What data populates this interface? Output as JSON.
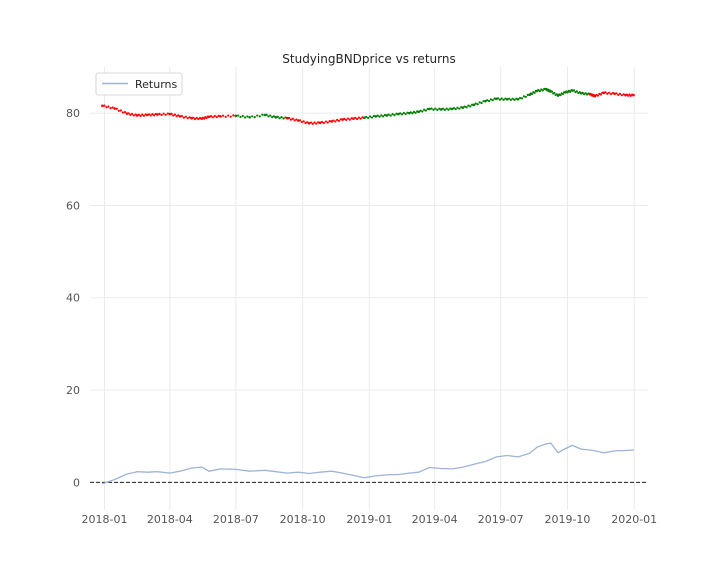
{
  "chart_data": {
    "type": "line",
    "title": "StudyingBNDprice vs returns",
    "xlabel": "",
    "ylabel": "",
    "xlim": [
      "2017-12-12",
      "2020-01-20"
    ],
    "ylim": [
      -6,
      90
    ],
    "grid": true,
    "legend_position": "top-left",
    "x_ticks": [
      "2018-01",
      "2018-04",
      "2018-07",
      "2018-10",
      "2019-01",
      "2019-04",
      "2019-07",
      "2019-10",
      "2020-01"
    ],
    "y_ticks": [
      0,
      20,
      40,
      60,
      80
    ],
    "reference_line": {
      "y": 0,
      "style": "dashed",
      "color": "#000000"
    },
    "colors": {
      "returns": "#9fb4d6",
      "price_down": "#ff0000",
      "price_up": "#008000",
      "grid": "#ebebeb"
    },
    "series": [
      {
        "name": "Returns",
        "style": "line",
        "points": [
          [
            "2017-12-29",
            -0.3
          ],
          [
            "2018-01-15",
            0.6
          ],
          [
            "2018-02-01",
            1.8
          ],
          [
            "2018-02-15",
            2.3
          ],
          [
            "2018-03-01",
            2.2
          ],
          [
            "2018-03-15",
            2.3
          ],
          [
            "2018-04-01",
            2.0
          ],
          [
            "2018-04-15",
            2.4
          ],
          [
            "2018-05-01",
            3.1
          ],
          [
            "2018-05-15",
            3.3
          ],
          [
            "2018-05-25",
            2.4
          ],
          [
            "2018-06-10",
            2.9
          ],
          [
            "2018-07-01",
            2.8
          ],
          [
            "2018-07-20",
            2.4
          ],
          [
            "2018-08-10",
            2.6
          ],
          [
            "2018-08-25",
            2.3
          ],
          [
            "2018-09-10",
            2.0
          ],
          [
            "2018-09-25",
            2.2
          ],
          [
            "2018-10-10",
            1.9
          ],
          [
            "2018-10-25",
            2.2
          ],
          [
            "2018-11-10",
            2.4
          ],
          [
            "2018-11-25",
            2.0
          ],
          [
            "2018-12-10",
            1.5
          ],
          [
            "2018-12-25",
            1.0
          ],
          [
            "2019-01-10",
            1.4
          ],
          [
            "2019-01-25",
            1.6
          ],
          [
            "2019-02-10",
            1.7
          ],
          [
            "2019-02-25",
            2.0
          ],
          [
            "2019-03-10",
            2.2
          ],
          [
            "2019-03-25",
            3.2
          ],
          [
            "2019-04-10",
            3.0
          ],
          [
            "2019-04-25",
            2.9
          ],
          [
            "2019-05-10",
            3.3
          ],
          [
            "2019-05-25",
            3.9
          ],
          [
            "2019-06-10",
            4.5
          ],
          [
            "2019-06-25",
            5.5
          ],
          [
            "2019-07-10",
            5.8
          ],
          [
            "2019-07-25",
            5.5
          ],
          [
            "2019-08-10",
            6.3
          ],
          [
            "2019-08-20",
            7.6
          ],
          [
            "2019-09-01",
            8.3
          ],
          [
            "2019-09-08",
            8.5
          ],
          [
            "2019-09-18",
            6.4
          ],
          [
            "2019-09-28",
            7.3
          ],
          [
            "2019-10-08",
            8.0
          ],
          [
            "2019-10-20",
            7.2
          ],
          [
            "2019-11-01",
            7.0
          ],
          [
            "2019-11-08",
            6.8
          ],
          [
            "2019-11-20",
            6.4
          ],
          [
            "2019-12-05",
            6.8
          ],
          [
            "2019-12-20",
            6.9
          ],
          [
            "2019-12-31",
            7.0
          ]
        ]
      },
      {
        "name": "",
        "style": "markers",
        "color": "#ff0000",
        "points": [
          [
            "2017-12-29",
            81.6
          ],
          [
            "2018-01-15",
            81.0
          ],
          [
            "2018-02-01",
            79.9
          ],
          [
            "2018-02-15",
            79.5
          ],
          [
            "2018-03-01",
            79.6
          ],
          [
            "2018-03-15",
            79.7
          ],
          [
            "2018-04-01",
            79.8
          ],
          [
            "2018-04-15",
            79.3
          ],
          [
            "2018-05-01",
            78.9
          ],
          [
            "2018-05-15",
            78.8
          ],
          [
            "2018-05-25",
            79.2
          ],
          [
            "2018-06-10",
            79.3
          ],
          [
            "2018-07-01",
            79.4
          ]
        ]
      },
      {
        "name": "",
        "style": "markers",
        "color": "#008000",
        "points": [
          [
            "2018-07-01",
            79.4
          ],
          [
            "2018-07-20",
            79.1
          ],
          [
            "2018-08-10",
            79.6
          ],
          [
            "2018-08-25",
            79.1
          ],
          [
            "2018-09-10",
            78.9
          ]
        ]
      },
      {
        "name": "",
        "style": "markers",
        "color": "#ff0000",
        "points": [
          [
            "2018-09-10",
            78.9
          ],
          [
            "2018-09-25",
            78.4
          ],
          [
            "2018-10-10",
            77.8
          ],
          [
            "2018-10-25",
            77.9
          ],
          [
            "2018-11-10",
            78.2
          ],
          [
            "2018-11-25",
            78.6
          ],
          [
            "2018-12-10",
            78.8
          ],
          [
            "2018-12-25",
            79.0
          ]
        ]
      },
      {
        "name": "",
        "style": "markers",
        "color": "#008000",
        "points": [
          [
            "2018-12-25",
            79.0
          ],
          [
            "2019-01-10",
            79.3
          ],
          [
            "2019-01-25",
            79.5
          ],
          [
            "2019-02-10",
            79.8
          ],
          [
            "2019-02-25",
            80.0
          ],
          [
            "2019-03-10",
            80.3
          ],
          [
            "2019-03-25",
            80.9
          ],
          [
            "2019-04-10",
            80.8
          ],
          [
            "2019-04-25",
            80.9
          ],
          [
            "2019-05-10",
            81.2
          ],
          [
            "2019-05-25",
            81.8
          ],
          [
            "2019-06-10",
            82.6
          ],
          [
            "2019-06-25",
            83.1
          ],
          [
            "2019-07-10",
            83.0
          ],
          [
            "2019-07-25",
            83.0
          ],
          [
            "2019-08-10",
            84.0
          ],
          [
            "2019-08-20",
            84.8
          ],
          [
            "2019-09-01",
            85.2
          ],
          [
            "2019-09-08",
            84.7
          ],
          [
            "2019-09-18",
            83.8
          ],
          [
            "2019-09-28",
            84.5
          ],
          [
            "2019-10-08",
            84.9
          ],
          [
            "2019-10-20",
            84.3
          ],
          [
            "2019-11-01",
            84.1
          ]
        ]
      },
      {
        "name": "",
        "style": "markers",
        "color": "#ff0000",
        "points": [
          [
            "2019-11-01",
            84.1
          ],
          [
            "2019-11-08",
            83.7
          ],
          [
            "2019-11-20",
            84.4
          ],
          [
            "2019-12-05",
            84.2
          ],
          [
            "2019-12-20",
            83.9
          ],
          [
            "2019-12-31",
            83.9
          ]
        ]
      }
    ]
  }
}
